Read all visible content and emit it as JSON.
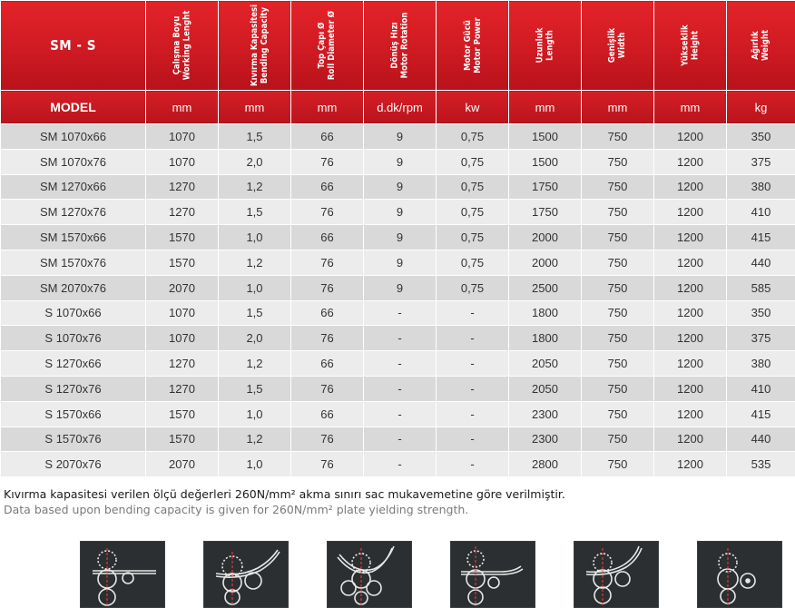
{
  "header": {
    "series_label": "SM - S",
    "columns": [
      {
        "tr": "Çalışma Boyu",
        "en": "Working Lenght"
      },
      {
        "tr": "Kıvırma Kapasitesi",
        "en": "Bending Capacity"
      },
      {
        "tr": "Top Çapı Ø",
        "en": "Roll Diameter Ø"
      },
      {
        "tr": "Dönüş Hızı",
        "en": "Motor Rotation"
      },
      {
        "tr": "Motor Gücü",
        "en": "Motor Power"
      },
      {
        "tr": "Uzunluk",
        "en": "Length"
      },
      {
        "tr": "Genişlik",
        "en": "Width"
      },
      {
        "tr": "Yükseklik",
        "en": "Height"
      },
      {
        "tr": "Ağırlık",
        "en": "Weight"
      }
    ]
  },
  "units": {
    "model_label": "MODEL",
    "values": [
      "mm",
      "mm",
      "mm",
      "d.dk/rpm",
      "kw",
      "mm",
      "mm",
      "mm",
      "kg"
    ]
  },
  "rows": [
    [
      "SM 1070x66",
      "1070",
      "1,5",
      "66",
      "9",
      "0,75",
      "1500",
      "750",
      "1200",
      "350"
    ],
    [
      "SM 1070x76",
      "1070",
      "2,0",
      "76",
      "9",
      "0,75",
      "1500",
      "750",
      "1200",
      "375"
    ],
    [
      "SM 1270x66",
      "1270",
      "1,2",
      "66",
      "9",
      "0,75",
      "1750",
      "750",
      "1200",
      "380"
    ],
    [
      "SM 1270x76",
      "1270",
      "1,5",
      "76",
      "9",
      "0,75",
      "1750",
      "750",
      "1200",
      "410"
    ],
    [
      "SM 1570x66",
      "1570",
      "1,0",
      "66",
      "9",
      "0,75",
      "2000",
      "750",
      "1200",
      "415"
    ],
    [
      "SM 1570x76",
      "1570",
      "1,2",
      "76",
      "9",
      "0,75",
      "2000",
      "750",
      "1200",
      "440"
    ],
    [
      "SM 2070x76",
      "2070",
      "1,0",
      "76",
      "9",
      "0,75",
      "2500",
      "750",
      "1200",
      "585"
    ],
    [
      "S 1070x66",
      "1070",
      "1,5",
      "66",
      "-",
      "-",
      "1800",
      "750",
      "1200",
      "350"
    ],
    [
      "S 1070x76",
      "1070",
      "2,0",
      "76",
      "-",
      "-",
      "1800",
      "750",
      "1200",
      "375"
    ],
    [
      "S 1270x66",
      "1270",
      "1,2",
      "66",
      "-",
      "-",
      "2050",
      "750",
      "1200",
      "380"
    ],
    [
      "S 1270x76",
      "1270",
      "1,5",
      "76",
      "-",
      "-",
      "2050",
      "750",
      "1200",
      "410"
    ],
    [
      "S 1570x66",
      "1570",
      "1,0",
      "66",
      "-",
      "-",
      "2300",
      "750",
      "1200",
      "415"
    ],
    [
      "S 1570x76",
      "1570",
      "1,2",
      "76",
      "-",
      "-",
      "2300",
      "750",
      "1200",
      "440"
    ],
    [
      "S 2070x76",
      "2070",
      "1,0",
      "76",
      "-",
      "-",
      "2800",
      "750",
      "1200",
      "535"
    ]
  ],
  "notes": {
    "tr": "Kıvırma kapasitesi verilen ölçü değerleri 260N/mm² akma sınırı sac mukavemetine göre verilmiştir.",
    "en": "Data based upon bending capacity is given for 260N/mm² plate yielding strength."
  },
  "diagrams": [
    {
      "icon": "roll-diagram-1-icon"
    },
    {
      "icon": "roll-diagram-2-icon"
    },
    {
      "icon": "roll-diagram-3-icon"
    },
    {
      "icon": "roll-diagram-4-icon"
    },
    {
      "icon": "roll-diagram-5-icon"
    },
    {
      "icon": "roll-diagram-6-icon"
    }
  ],
  "colors": {
    "header_red": "#d11c24",
    "row_dark": "#d9d9d9",
    "row_light": "#ececec",
    "diagram_bg": "#2b2f31"
  }
}
